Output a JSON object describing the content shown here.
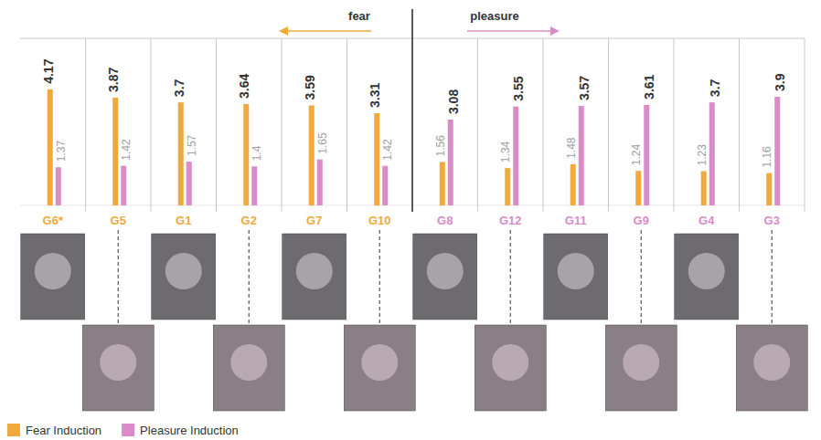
{
  "chart_data": {
    "type": "bar",
    "categories": [
      "G6*",
      "G5",
      "G1",
      "G2",
      "G7",
      "G10",
      "G8",
      "G12",
      "G11",
      "G9",
      "G4",
      "G3"
    ],
    "series": [
      {
        "name": "Fear Induction",
        "color": "#F0AA3C",
        "values": [
          4.17,
          3.87,
          3.7,
          3.64,
          3.59,
          3.31,
          1.56,
          1.34,
          1.48,
          1.24,
          1.23,
          1.16
        ]
      },
      {
        "name": "Pleasure Induction",
        "color": "#D98CC8",
        "values": [
          1.37,
          1.42,
          1.57,
          1.4,
          1.65,
          1.42,
          3.08,
          3.55,
          3.57,
          3.61,
          3.7,
          3.9
        ]
      }
    ],
    "ylim": [
      0,
      6
    ],
    "tick_labels": false,
    "data_labels": true,
    "legend": "bottom-left",
    "annotations": [
      {
        "text": "fear"
      },
      {
        "text": "pleasure"
      }
    ]
  }
}
